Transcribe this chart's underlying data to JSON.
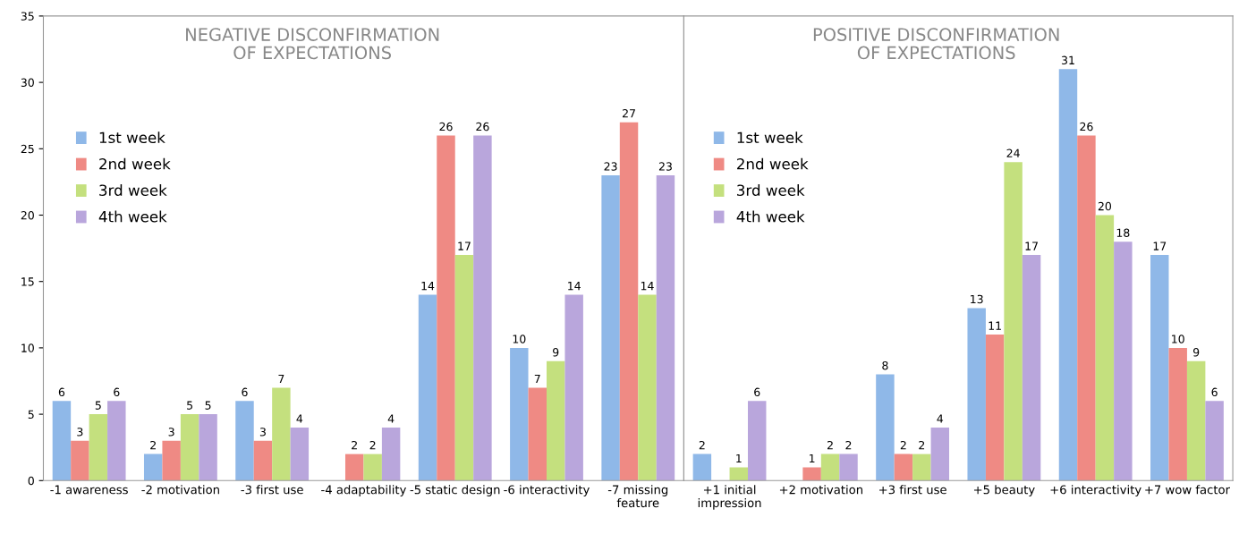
{
  "chart_data": [
    {
      "type": "bar",
      "title": "NEGATIVE DISCONFIRMATION\nOF EXPECTATIONS",
      "categories": [
        "-1 awareness",
        "-2 motivation",
        "-3 first use",
        "-4 adaptability",
        "-5 static design",
        "-6 interactivity",
        "-7 missing\nfeature"
      ],
      "series": [
        {
          "name": "1st week",
          "color": "#8fb8e8",
          "values": [
            6,
            2,
            6,
            null,
            14,
            10,
            23
          ]
        },
        {
          "name": "2nd week",
          "color": "#ef8a84",
          "values": [
            3,
            3,
            3,
            2,
            26,
            7,
            27
          ]
        },
        {
          "name": "3rd week",
          "color": "#c4e07e",
          "values": [
            5,
            5,
            7,
            2,
            17,
            9,
            14
          ]
        },
        {
          "name": "4th week",
          "color": "#b9a6dc",
          "values": [
            6,
            5,
            4,
            4,
            26,
            14,
            23
          ]
        }
      ],
      "ylim": [
        0,
        35
      ],
      "yticks": [
        0,
        5,
        10,
        15,
        20,
        25,
        30,
        35
      ],
      "legend": "top left",
      "data_labels": true
    },
    {
      "type": "bar",
      "title": "POSITIVE DISCONFIRMATION\nOF EXPECTATIONS",
      "categories": [
        "+1 initial\nimpression",
        "+2 motivation",
        "+3 first use",
        "+5 beauty",
        "+6 interactivity",
        "+7 wow factor"
      ],
      "series": [
        {
          "name": "1st week",
          "color": "#8fb8e8",
          "values": [
            2,
            null,
            8,
            13,
            31,
            17
          ]
        },
        {
          "name": "2nd week",
          "color": "#ef8a84",
          "values": [
            null,
            1,
            2,
            11,
            26,
            10
          ]
        },
        {
          "name": "3rd week",
          "color": "#c4e07e",
          "values": [
            1,
            2,
            2,
            24,
            20,
            9
          ]
        },
        {
          "name": "4th week",
          "color": "#b9a6dc",
          "values": [
            6,
            2,
            4,
            17,
            18,
            6
          ]
        }
      ],
      "ylim": [
        0,
        35
      ],
      "yticks": [
        0,
        5,
        10,
        15,
        20,
        25,
        30,
        35
      ],
      "tick_labels": "x",
      "legend": "top left",
      "data_labels": true
    }
  ]
}
